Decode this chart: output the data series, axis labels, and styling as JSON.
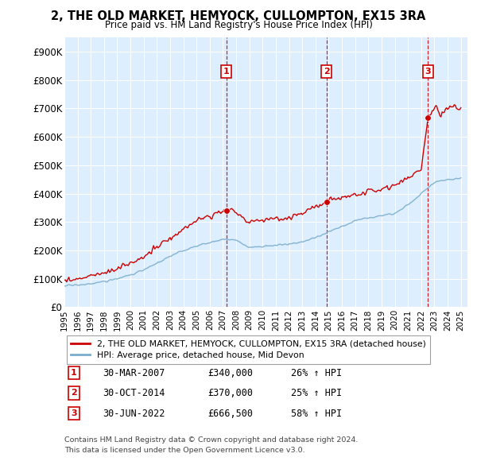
{
  "title": "2, THE OLD MARKET, HEMYOCK, CULLOMPTON, EX15 3RA",
  "subtitle": "Price paid vs. HM Land Registry's House Price Index (HPI)",
  "ylim": [
    0,
    950000
  ],
  "yticks": [
    0,
    100000,
    200000,
    300000,
    400000,
    500000,
    600000,
    700000,
    800000,
    900000
  ],
  "ytick_labels": [
    "£0",
    "£100K",
    "£200K",
    "£300K",
    "£400K",
    "£500K",
    "£600K",
    "£700K",
    "£800K",
    "£900K"
  ],
  "xlim_start": 1995.0,
  "xlim_end": 2025.5,
  "sale_color": "#cc0000",
  "hpi_color": "#7aadcc",
  "dashed_line_color": "#cc0000",
  "plot_bg": "#ddeeff",
  "grid_color": "#ffffff",
  "transactions": [
    {
      "num": 1,
      "date_x": 2007.25,
      "price": 340000,
      "date_str": "30-MAR-2007",
      "pct": "26%",
      "dir": "↑"
    },
    {
      "num": 2,
      "date_x": 2014.83,
      "price": 370000,
      "date_str": "30-OCT-2014",
      "pct": "25%",
      "dir": "↑"
    },
    {
      "num": 3,
      "date_x": 2022.5,
      "price": 666500,
      "date_str": "30-JUN-2022",
      "pct": "58%",
      "dir": "↑"
    }
  ],
  "footer_line1": "Contains HM Land Registry data © Crown copyright and database right 2024.",
  "footer_line2": "This data is licensed under the Open Government Licence v3.0.",
  "legend_line1": "2, THE OLD MARKET, HEMYOCK, CULLOMPTON, EX15 3RA (detached house)",
  "legend_line2": "HPI: Average price, detached house, Mid Devon"
}
